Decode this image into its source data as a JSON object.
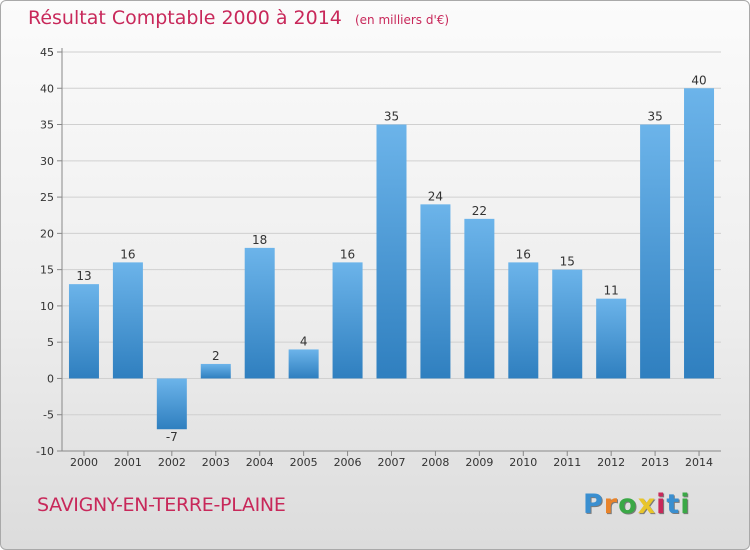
{
  "title": "Résultat Comptable 2000 à 2014",
  "unit": "(en milliers d'€)",
  "commune": "SAVIGNY-EN-TERRE-PLAINE",
  "logo": [
    "P",
    "r",
    "o",
    "x",
    "i",
    "t",
    "i"
  ],
  "colors": {
    "title": "#c8285a",
    "bar_light": "#6cb4ea",
    "bar_dark": "#2f7fbf",
    "logo": [
      "#3a8fd0",
      "#e8832a",
      "#3aa846",
      "#e8c52a",
      "#c8285a",
      "#3a8fd0",
      "#3aa846"
    ]
  },
  "chart_data": {
    "type": "bar",
    "title": "Résultat Comptable 2000 à 2014",
    "ylabel": "(en milliers d'€)",
    "xlabel": "",
    "categories": [
      "2000",
      "2001",
      "2002",
      "2003",
      "2004",
      "2005",
      "2006",
      "2007",
      "2008",
      "2009",
      "2010",
      "2011",
      "2012",
      "2013",
      "2014"
    ],
    "values": [
      13,
      16,
      -7,
      2,
      18,
      4,
      16,
      35,
      24,
      22,
      16,
      15,
      11,
      35,
      40
    ],
    "ylim": [
      -10,
      45
    ],
    "yticks": [
      -10,
      -5,
      0,
      5,
      10,
      15,
      20,
      25,
      30,
      35,
      40,
      45
    ],
    "grid": true
  }
}
